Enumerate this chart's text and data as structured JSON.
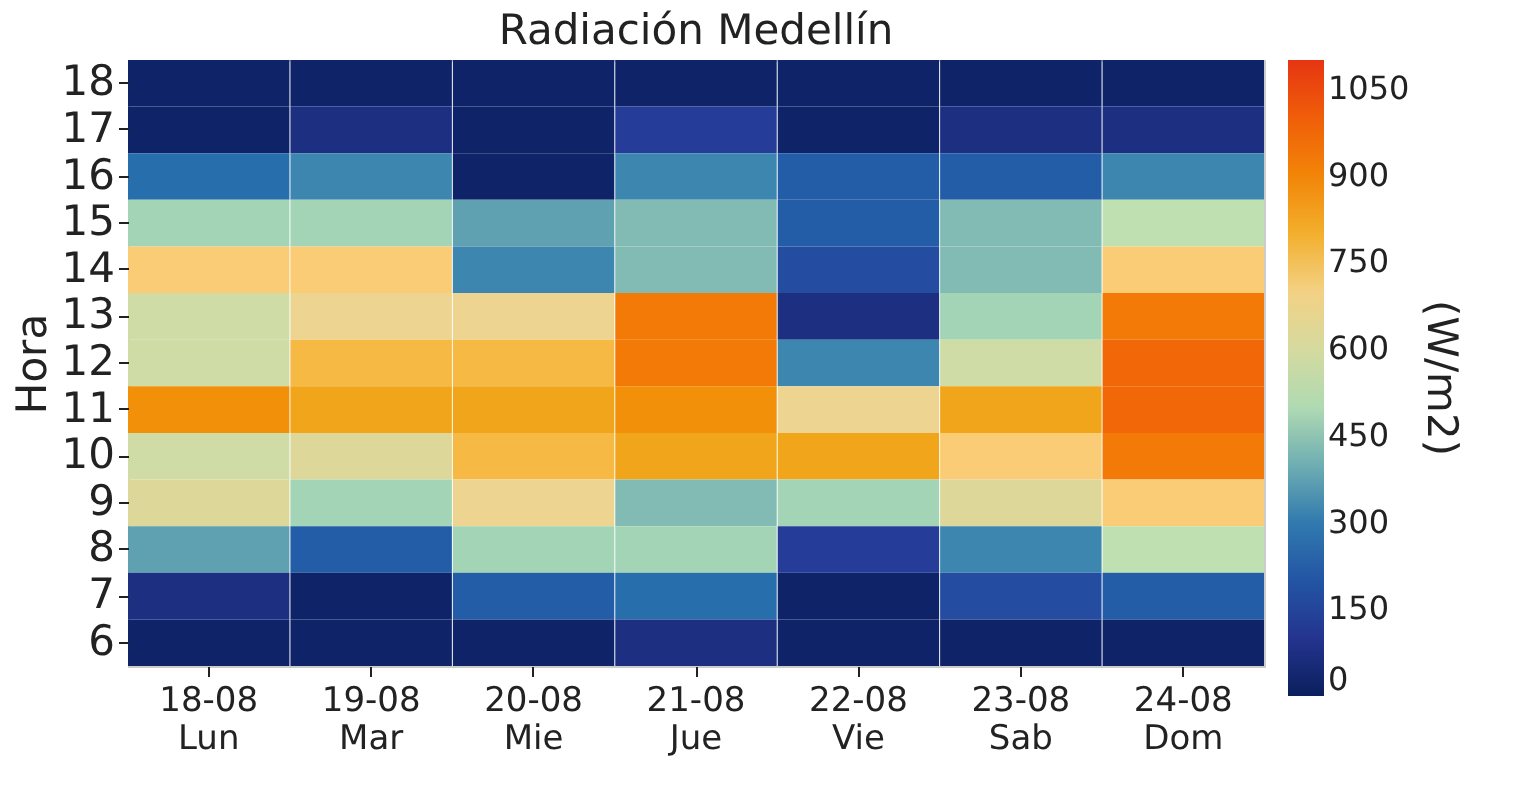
{
  "chart_data": {
    "type": "heatmap",
    "title": "Radiación Medellín",
    "ylabel": "Hora",
    "clabel": "(W/m2)",
    "categories": [
      "18-08\nLun",
      "19-08\nMar",
      "20-08\nMie",
      "21-08\nJue",
      "22-08\nVie",
      "23-08\nSab",
      "24-08\nDom"
    ],
    "y_categories": [
      "18",
      "17",
      "16",
      "15",
      "14",
      "13",
      "12",
      "11",
      "10",
      "9",
      "8",
      "7",
      "6"
    ],
    "cells": [
      [
        25,
        25,
        25,
        25,
        25,
        25,
        25
      ],
      [
        25,
        75,
        25,
        125,
        25,
        75,
        75
      ],
      [
        275,
        325,
        25,
        325,
        225,
        225,
        325
      ],
      [
        475,
        475,
        375,
        425,
        225,
        425,
        525
      ],
      [
        725,
        725,
        325,
        425,
        175,
        425,
        725
      ],
      [
        575,
        675,
        675,
        925,
        75,
        475,
        925
      ],
      [
        575,
        775,
        775,
        925,
        325,
        575,
        975
      ],
      [
        875,
        825,
        825,
        875,
        675,
        825,
        975
      ],
      [
        575,
        625,
        775,
        825,
        825,
        725,
        925
      ],
      [
        625,
        475,
        675,
        425,
        475,
        625,
        725
      ],
      [
        375,
        225,
        475,
        475,
        125,
        325,
        525
      ],
      [
        75,
        25,
        225,
        275,
        25,
        175,
        225
      ],
      [
        25,
        25,
        25,
        75,
        25,
        25,
        25
      ]
    ],
    "clim": [
      0,
      1100
    ],
    "cticks": [
      0,
      150,
      300,
      450,
      600,
      750,
      900,
      1050
    ],
    "colors": [
      "#0a1f5c",
      "#152a75",
      "#263592",
      "#2547a0",
      "#2458a5",
      "#2468ab",
      "#3880b0",
      "#5b9bb0",
      "#7fb8b3",
      "#a1d3b5",
      "#bfe0b0",
      "#cfdca6",
      "#ded898",
      "#efd590",
      "#fbca70",
      "#f4b436",
      "#f0a00c",
      "#f2890a",
      "#f47106",
      "#f06008",
      "#ec4d0e",
      "#e63512"
    ]
  }
}
